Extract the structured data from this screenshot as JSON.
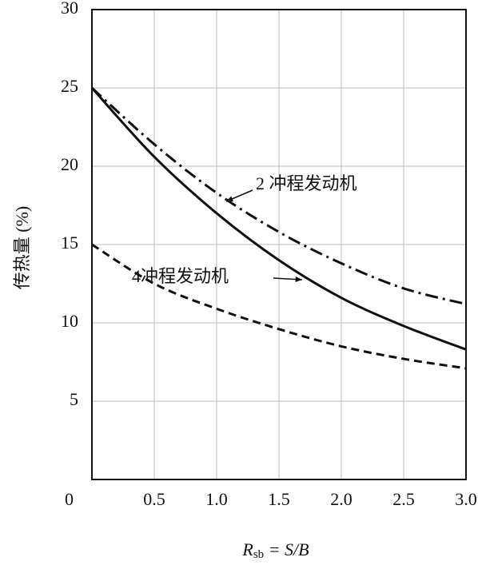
{
  "chart_data": {
    "type": "line",
    "ylabel": "传热量 (%)",
    "xlabel": {
      "symbol": "R",
      "subscript": "sb",
      "rest": " = S/B"
    },
    "x": [
      0,
      0.5,
      1.0,
      1.5,
      2.0,
      2.5,
      3.0
    ],
    "series": [
      {
        "name": "2 冲程发动机",
        "color": "#111111",
        "style": "dashdot",
        "values": [
          25,
          21.4,
          18.3,
          15.8,
          13.8,
          12.2,
          11.2
        ]
      },
      {
        "name": "4冲程发动机",
        "color": "#111111",
        "style": "solid",
        "values": [
          25,
          20.6,
          17.0,
          14.0,
          11.6,
          9.8,
          8.3
        ]
      },
      {
        "color": "#111111",
        "style": "dashed",
        "values": [
          15,
          12.5,
          10.9,
          9.6,
          8.5,
          7.7,
          7.1
        ]
      }
    ],
    "xlim": [
      0,
      3.0
    ],
    "xticks": [
      0.5,
      {
        "value": 1.0,
        "label": "1.0"
      },
      1.5,
      {
        "value": 2.0,
        "label": "2.0"
      },
      2.5,
      {
        "value": 3.0,
        "label": "3.0"
      }
    ],
    "ylim": [
      0,
      30
    ],
    "yticks": [
      0,
      5,
      10,
      15,
      20,
      25,
      30
    ],
    "grid": true
  }
}
